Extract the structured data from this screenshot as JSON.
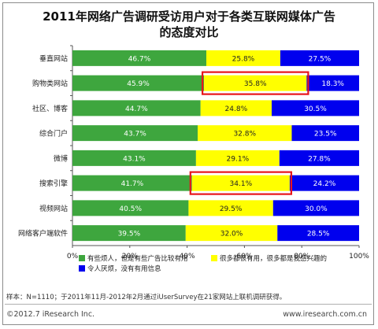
{
  "chart_data": {
    "type": "bar",
    "stacked": true,
    "orientation": "horizontal",
    "title": "2011年网络广告调研受访用户对于各类互联网媒体广告",
    "subtitle": "的态度对比",
    "categories": [
      "垂直网站",
      "购物类网站",
      "社区、博客",
      "综合门户",
      "微博",
      "搜索引擎",
      "视频网站",
      "网络客户端软件"
    ],
    "series": [
      {
        "name": "有些烦人，但是有些广告比较有用",
        "color": "#3ea63e",
        "values": [
          46.7,
          45.9,
          44.7,
          43.7,
          43.1,
          41.7,
          40.5,
          39.5
        ],
        "labels": [
          "46.7%",
          "45.9%",
          "44.7%",
          "43.7%",
          "43.1%",
          "41.7%",
          "40.5%",
          "39.5%"
        ]
      },
      {
        "name": "很多都很有用，很多都是我感兴趣的",
        "color": "#ffff00",
        "values": [
          25.8,
          35.8,
          24.8,
          32.8,
          29.1,
          34.1,
          29.5,
          32.0
        ],
        "labels": [
          "25.8%",
          "35.8%",
          "24.8%",
          "32.8%",
          "29.1%",
          "34.1%",
          "29.5%",
          "32.0%"
        ]
      },
      {
        "name": "令人厌烦，没有有用信息",
        "color": "#0000ee",
        "values": [
          27.5,
          18.3,
          30.5,
          23.5,
          27.8,
          24.2,
          30.0,
          28.5
        ],
        "labels": [
          "27.5%",
          "18.3%",
          "30.5%",
          "23.5%",
          "27.8%",
          "24.2%",
          "30.0%",
          "28.5%"
        ]
      }
    ],
    "x_ticks": [
      "0%",
      "20%",
      "40%",
      "60%",
      "80%",
      "100%"
    ],
    "xlim": [
      0,
      100
    ],
    "grid": false,
    "highlighted_categories": [
      "购物类网站",
      "搜索引擎"
    ],
    "highlight_color": "#e8151b",
    "legend_position": "bottom-right"
  },
  "footnote": "样本：N=1110；于2011年11月-2012年2月通过iUserSurvey在21家网站上联机调研获得。",
  "copyright": "©2012.7 iResearch Inc.",
  "website": "www.iresearch.com.cn"
}
